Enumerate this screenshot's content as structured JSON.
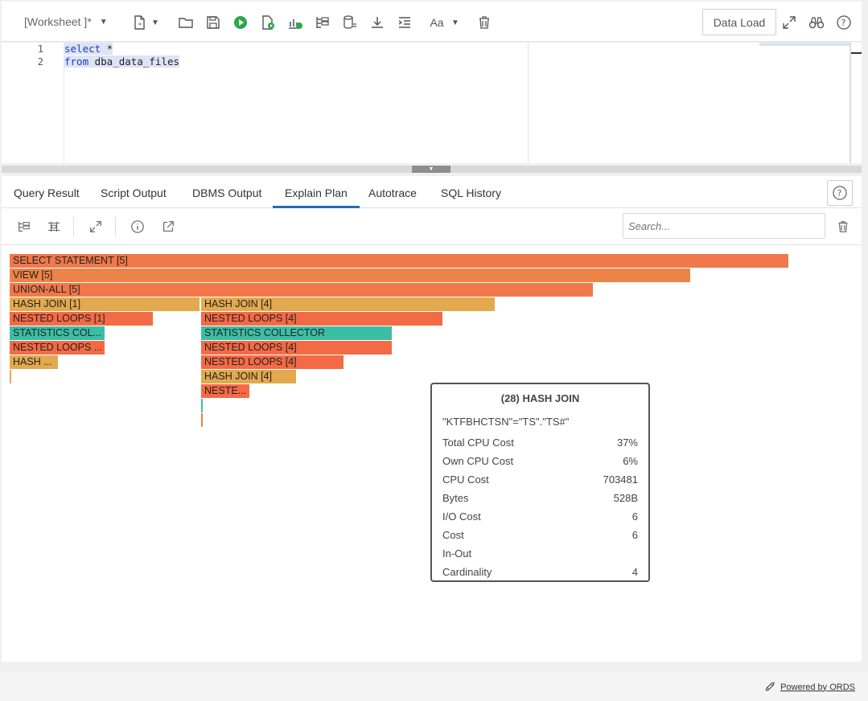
{
  "toolbar": {
    "worksheet_label": "[Worksheet ]*",
    "data_load_label": "Data Load"
  },
  "editor": {
    "lines": [
      {
        "no": "1",
        "keyword": "select",
        "rest": " *"
      },
      {
        "no": "2",
        "keyword": "from",
        "rest": " dba_data_files"
      }
    ]
  },
  "tabs": [
    "Query Result",
    "Script Output",
    "DBMS Output",
    "Explain Plan",
    "Autotrace",
    "SQL History"
  ],
  "active_tab": "Explain Plan",
  "search": {
    "placeholder": "Search..."
  },
  "plan_nodes": [
    {
      "label": "SELECT STATEMENT [5]"
    },
    {
      "label": "VIEW [5]"
    },
    {
      "label": "UNION-ALL [5]"
    },
    {
      "label": "HASH JOIN [1]"
    },
    {
      "label": "HASH JOIN [4]"
    },
    {
      "label": "NESTED LOOPS [1]"
    },
    {
      "label": "NESTED LOOPS [4]"
    },
    {
      "label": "STATISTICS COL..."
    },
    {
      "label": "STATISTICS COLLECTOR"
    },
    {
      "label": "NESTED LOOPS ..."
    },
    {
      "label": "NESTED LOOPS [4]"
    },
    {
      "label": "HASH ..."
    },
    {
      "label": "NESTED LOOPS [4]"
    },
    {
      "label": "HASH JOIN [4]"
    },
    {
      "label": "NESTE..."
    }
  ],
  "colors": {
    "red": "#f46a45",
    "orange": "#ee8347",
    "yellow": "#e2a94e",
    "teal": "#3bbfa4",
    "tab_accent": "#1f6fb5"
  },
  "tooltip": {
    "title": "(28) HASH JOIN",
    "predicate": "\"KTFBHCTSN\"=\"TS\".\"TS#\"",
    "rows": [
      {
        "label": "Total CPU Cost",
        "value": "37%"
      },
      {
        "label": "Own CPU Cost",
        "value": "6%"
      },
      {
        "label": "CPU Cost",
        "value": "703481"
      },
      {
        "label": "Bytes",
        "value": "528B"
      },
      {
        "label": "I/O Cost",
        "value": "6"
      },
      {
        "label": "Cost",
        "value": "6"
      },
      {
        "label": "In-Out",
        "value": ""
      },
      {
        "label": "Cardinality",
        "value": "4"
      }
    ]
  },
  "footer": {
    "powered_by": "Powered by ORDS"
  }
}
